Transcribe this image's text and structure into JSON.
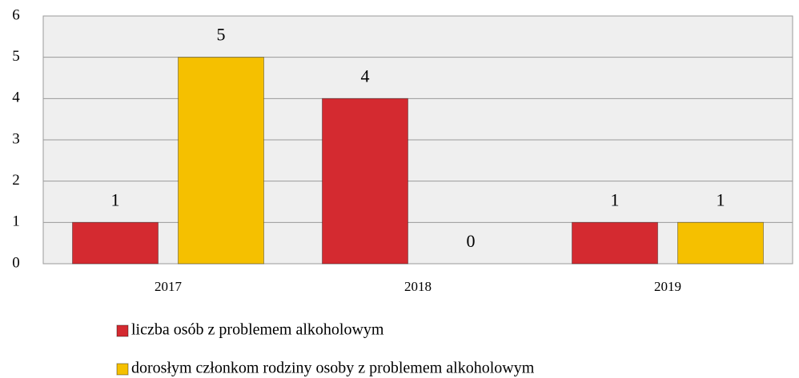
{
  "chart_data": {
    "type": "bar",
    "categories": [
      "2017",
      "2018",
      "2019"
    ],
    "series": [
      {
        "name": "liczba osób z problemem alkoholowym",
        "color": "#d42a30",
        "values": [
          1,
          4,
          1
        ]
      },
      {
        "name": "dorosłym członkom rodziny osoby z problemem alkoholowym",
        "color": "#f5c000",
        "values": [
          5,
          0,
          1
        ]
      }
    ],
    "ylim": [
      0,
      6
    ],
    "yticks": [
      0,
      1,
      2,
      3,
      4,
      5,
      6
    ],
    "grid": true
  }
}
